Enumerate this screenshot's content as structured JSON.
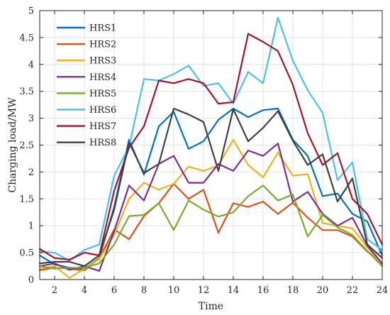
{
  "chart_data": {
    "type": "line",
    "title": "",
    "xlabel": "Time",
    "ylabel": "Charging load/MW",
    "xlim": [
      1,
      24
    ],
    "ylim": [
      0,
      5
    ],
    "xticks": [
      2,
      4,
      6,
      8,
      10,
      12,
      14,
      16,
      18,
      20,
      22,
      24
    ],
    "xtick_labels": [
      "2",
      "4",
      "6",
      "8",
      "10",
      "12",
      "14",
      "16",
      "18",
      "20",
      "22",
      "24"
    ],
    "yticks": [
      0,
      0.5,
      1,
      1.5,
      2,
      2.5,
      3,
      3.5,
      4,
      4.5,
      5
    ],
    "ytick_labels": [
      "0",
      "0.5",
      "1",
      "1.5",
      "2",
      "2.5",
      "3",
      "3.5",
      "4",
      "4.5",
      "5"
    ],
    "grid": true,
    "legend_position": "top-left",
    "x": [
      1,
      2,
      3,
      4,
      5,
      6,
      7,
      8,
      9,
      10,
      11,
      12,
      13,
      14,
      15,
      16,
      17,
      18,
      19,
      20,
      21,
      22,
      23,
      24
    ],
    "series": [
      {
        "name": "HRS1",
        "color": "#0072BD",
        "values": [
          0.45,
          0.28,
          0.22,
          0.2,
          0.4,
          1.35,
          2.6,
          1.95,
          2.85,
          3.12,
          2.43,
          2.57,
          2.97,
          3.18,
          3.02,
          3.15,
          3.18,
          2.6,
          2.3,
          1.55,
          1.6,
          1.22,
          1.08,
          0.45
        ]
      },
      {
        "name": "HRS2",
        "color": "#D95319",
        "values": [
          0.17,
          0.22,
          0.2,
          0.17,
          0.4,
          0.93,
          0.75,
          1.18,
          1.42,
          1.78,
          1.5,
          1.67,
          0.87,
          1.42,
          1.35,
          1.45,
          1.22,
          1.43,
          1.15,
          0.92,
          0.92,
          0.8,
          0.52,
          0.3
        ]
      },
      {
        "name": "HRS3",
        "color": "#EDB120",
        "values": [
          0.2,
          0.25,
          0.03,
          0.2,
          0.38,
          0.83,
          1.5,
          1.8,
          1.67,
          1.78,
          2.1,
          2.02,
          2.12,
          2.6,
          2.13,
          1.9,
          2.36,
          1.93,
          1.96,
          1.05,
          1.0,
          0.95,
          0.6,
          0.25
        ]
      },
      {
        "name": "HRS4",
        "color": "#7E2F8E",
        "values": [
          0.25,
          0.3,
          0.18,
          0.25,
          0.16,
          0.9,
          1.75,
          1.47,
          2.15,
          2.3,
          1.8,
          1.8,
          2.15,
          2.02,
          2.4,
          2.3,
          2.53,
          1.45,
          1.63,
          1.22,
          1.0,
          1.15,
          0.63,
          0.3
        ]
      },
      {
        "name": "HRS5",
        "color": "#77AC30",
        "values": [
          0.25,
          0.2,
          0.22,
          0.22,
          0.3,
          0.65,
          1.18,
          1.2,
          1.42,
          0.92,
          1.47,
          1.3,
          1.17,
          1.25,
          1.55,
          1.75,
          1.47,
          1.58,
          0.8,
          1.2,
          0.97,
          0.83,
          0.53,
          0.25
        ]
      },
      {
        "name": "HRS6",
        "color": "#4DBEEE",
        "values": [
          0.52,
          0.5,
          0.35,
          0.55,
          0.65,
          1.93,
          2.47,
          3.73,
          3.7,
          3.82,
          3.98,
          3.6,
          3.65,
          3.27,
          3.86,
          3.65,
          4.87,
          4.07,
          3.52,
          3.1,
          1.85,
          2.18,
          0.75,
          0.55
        ]
      },
      {
        "name": "HRS7",
        "color": "#A2142F",
        "values": [
          0.57,
          0.4,
          0.37,
          0.5,
          0.45,
          1.65,
          2.45,
          2.85,
          3.7,
          3.65,
          3.73,
          3.65,
          3.27,
          3.3,
          4.57,
          4.42,
          4.25,
          3.62,
          2.72,
          2.13,
          2.35,
          1.5,
          1.22,
          0.65
        ]
      },
      {
        "name": "HRS8",
        "color": "#404040",
        "values": [
          0.3,
          0.33,
          0.33,
          0.25,
          0.45,
          1.3,
          2.55,
          1.98,
          2.15,
          3.18,
          3.07,
          2.93,
          2.02,
          3.17,
          2.57,
          2.82,
          3.13,
          2.58,
          2.13,
          2.33,
          1.45,
          1.88,
          0.65,
          0.4
        ]
      }
    ]
  }
}
